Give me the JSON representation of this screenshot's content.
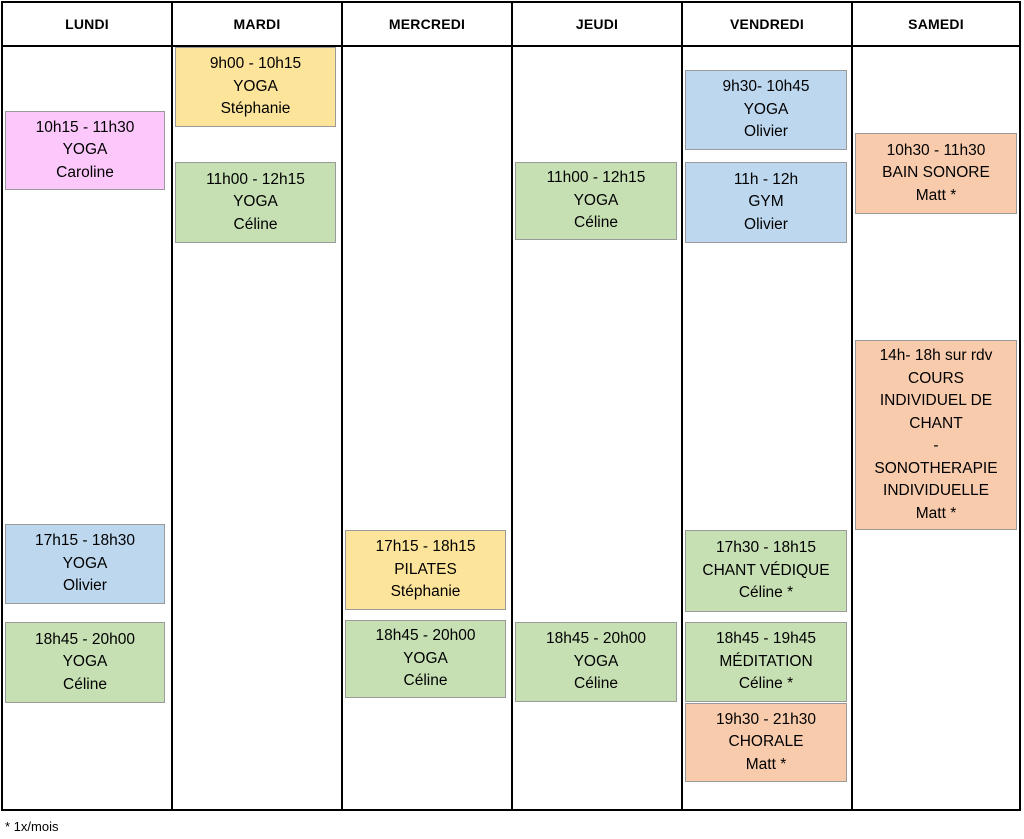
{
  "days": [
    "LUNDI",
    "MARDI",
    "MERCREDI",
    "JEUDI",
    "VENDREDI",
    "SAMEDI"
  ],
  "colors": {
    "pink": "#fcc8fb",
    "yellow": "#fde49b",
    "green": "#c6e0b4",
    "blue": "#bdd7ee",
    "orange": "#f8cbad"
  },
  "sessions": [
    {
      "day": "LUNDI",
      "color": "pink",
      "lines": [
        "10h15 - 11h30",
        "YOGA",
        "Caroline"
      ]
    },
    {
      "day": "LUNDI",
      "color": "blue",
      "lines": [
        "17h15 - 18h30",
        "YOGA",
        "Olivier"
      ]
    },
    {
      "day": "LUNDI",
      "color": "green",
      "lines": [
        "18h45 - 20h00",
        "YOGA",
        "Céline"
      ]
    },
    {
      "day": "MARDI",
      "color": "yellow",
      "lines": [
        "9h00 - 10h15",
        "YOGA",
        "Stéphanie"
      ]
    },
    {
      "day": "MARDI",
      "color": "green",
      "lines": [
        "11h00 - 12h15",
        "YOGA",
        "Céline"
      ]
    },
    {
      "day": "MERCREDI",
      "color": "yellow",
      "lines": [
        "17h15 - 18h15",
        "PILATES",
        "Stéphanie"
      ]
    },
    {
      "day": "MERCREDI",
      "color": "green",
      "lines": [
        "18h45 - 20h00",
        "YOGA",
        "Céline"
      ]
    },
    {
      "day": "JEUDI",
      "color": "green",
      "lines": [
        "11h00 - 12h15",
        "YOGA",
        "Céline"
      ]
    },
    {
      "day": "JEUDI",
      "color": "green",
      "lines": [
        "18h45 - 20h00",
        "YOGA",
        "Céline"
      ]
    },
    {
      "day": "VENDREDI",
      "color": "blue",
      "lines": [
        "9h30- 10h45",
        "YOGA",
        "Olivier"
      ]
    },
    {
      "day": "VENDREDI",
      "color": "blue",
      "lines": [
        "11h - 12h",
        "GYM",
        "Olivier"
      ]
    },
    {
      "day": "VENDREDI",
      "color": "green",
      "lines": [
        "17h30 - 18h15",
        "CHANT VÉDIQUE",
        "Céline *"
      ]
    },
    {
      "day": "VENDREDI",
      "color": "green",
      "lines": [
        "18h45 - 19h45",
        "MÉDITATION",
        "Céline *"
      ]
    },
    {
      "day": "VENDREDI",
      "color": "orange",
      "lines": [
        "19h30 - 21h30",
        "CHORALE",
        "Matt *"
      ]
    },
    {
      "day": "SAMEDI",
      "color": "orange",
      "lines": [
        "10h30 - 11h30",
        "BAIN SONORE",
        "Matt *"
      ]
    },
    {
      "day": "SAMEDI",
      "color": "orange",
      "lines": [
        "14h- 18h sur rdv",
        "COURS",
        "INDIVIDUEL DE",
        "CHANT",
        "-",
        "SONOTHERAPIE",
        "INDIVIDUELLE",
        "Matt *"
      ]
    }
  ],
  "footnote": "* 1x/mois"
}
